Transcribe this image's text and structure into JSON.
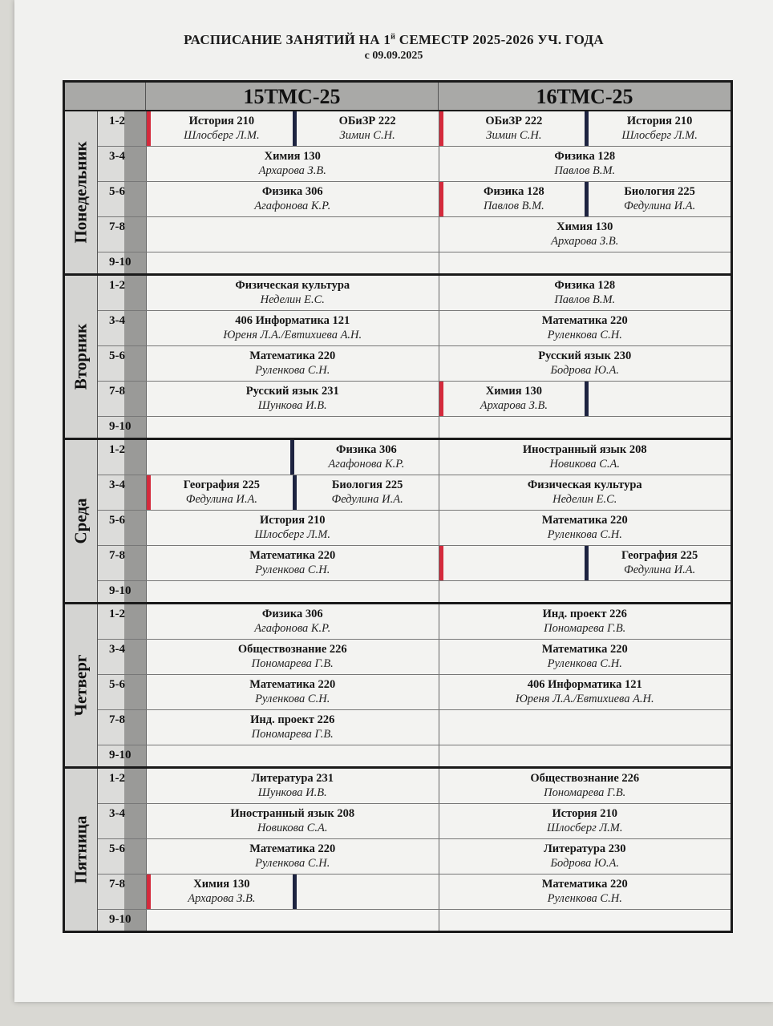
{
  "title": "РАСПИСАНИЕ ЗАНЯТИЙ НА 1",
  "title_sup": "й",
  "title_rest": " СЕМЕСТР 2025-2026 УЧ. ГОДА",
  "subtitle": "с 09.09.2025",
  "groups": [
    "15ТМС-25",
    "16ТМС-25"
  ],
  "marker_colors": {
    "red": "#d42a3c",
    "navy": "#1d2340"
  },
  "days": [
    {
      "name": "Понедельник",
      "rows": [
        {
          "pair": "1-2",
          "g": [
            {
              "type": "split",
              "left": {
                "subject": "История  210",
                "teacher": "Шлосберг Л.М."
              },
              "right": {
                "subject": "ОБиЗР  222",
                "teacher": "Зимин С.Н."
              }
            },
            {
              "type": "split",
              "left": {
                "subject": "ОБиЗР  222",
                "teacher": "Зимин С.Н."
              },
              "right": {
                "subject": "История  210",
                "teacher": "Шлосберг Л.М."
              }
            }
          ]
        },
        {
          "pair": "3-4",
          "g": [
            {
              "type": "full",
              "subject": "Химия 130",
              "teacher": "Архарова З.В."
            },
            {
              "type": "full",
              "subject": "Физика  128",
              "teacher": "Павлов В.М."
            }
          ]
        },
        {
          "pair": "5-6",
          "g": [
            {
              "type": "full",
              "subject": "Физика 306",
              "teacher": "Агафонова К.Р."
            },
            {
              "type": "split",
              "left": {
                "subject": "Физика  128",
                "teacher": "Павлов В.М."
              },
              "right": {
                "subject": "Биология 225",
                "teacher": "Федулина И.А."
              }
            }
          ]
        },
        {
          "pair": "7-8",
          "g": [
            {
              "type": "empty"
            },
            {
              "type": "full",
              "subject": "Химия 130",
              "teacher": "Архарова З.В."
            }
          ]
        },
        {
          "pair": "9-10",
          "g": [
            {
              "type": "empty"
            },
            {
              "type": "empty"
            }
          ]
        }
      ]
    },
    {
      "name": "Вторник",
      "rows": [
        {
          "pair": "1-2",
          "g": [
            {
              "type": "full",
              "subject": "Физическая культура",
              "teacher": "Неделин Е.С."
            },
            {
              "type": "full",
              "subject": "Физика  128",
              "teacher": "Павлов В.М."
            }
          ]
        },
        {
          "pair": "3-4",
          "g": [
            {
              "type": "full",
              "subject": "406   Информатика   121",
              "teacher": "Юреня Л.А./Евтихиева А.Н."
            },
            {
              "type": "full",
              "subject": "Математика  220",
              "teacher": "Руленкова С.Н."
            }
          ]
        },
        {
          "pair": "5-6",
          "g": [
            {
              "type": "full",
              "subject": "Математика  220",
              "teacher": "Руленкова С.Н."
            },
            {
              "type": "full",
              "subject": "Русский язык 230",
              "teacher": "Бодрова Ю.А."
            }
          ]
        },
        {
          "pair": "7-8",
          "g": [
            {
              "type": "full",
              "subject": "Русский язык 231",
              "teacher": "Шункова И.В."
            },
            {
              "type": "split",
              "left": {
                "subject": "Химия 130",
                "teacher": "Архарова З.В."
              },
              "right": null
            }
          ]
        },
        {
          "pair": "9-10",
          "g": [
            {
              "type": "empty"
            },
            {
              "type": "empty"
            }
          ]
        }
      ]
    },
    {
      "name": "Среда",
      "rows": [
        {
          "pair": "1-2",
          "g": [
            {
              "type": "split",
              "nomark": true,
              "left": null,
              "right": {
                "subject": "Физика 306",
                "teacher": "Агафонова К.Р."
              }
            },
            {
              "type": "full",
              "subject": "Иностранный язык   208",
              "teacher": "Новикова С.А."
            }
          ]
        },
        {
          "pair": "3-4",
          "g": [
            {
              "type": "split",
              "left": {
                "subject": "География  225",
                "teacher": "Федулина И.А."
              },
              "right": {
                "subject": "Биология 225",
                "teacher": "Федулина И.А."
              }
            },
            {
              "type": "full",
              "subject": "Физическая культура",
              "teacher": "Неделин Е.С."
            }
          ]
        },
        {
          "pair": "5-6",
          "g": [
            {
              "type": "full",
              "subject": "История  210",
              "teacher": "Шлосберг Л.М."
            },
            {
              "type": "full",
              "subject": "Математика  220",
              "teacher": "Руленкова С.Н."
            }
          ]
        },
        {
          "pair": "7-8",
          "g": [
            {
              "type": "full",
              "subject": "Математика  220",
              "teacher": "Руленкова С.Н."
            },
            {
              "type": "split",
              "left": null,
              "right": {
                "subject": "География  225",
                "teacher": "Федулина И.А."
              }
            }
          ]
        },
        {
          "pair": "9-10",
          "g": [
            {
              "type": "empty"
            },
            {
              "type": "empty"
            }
          ]
        }
      ]
    },
    {
      "name": "Четверг",
      "rows": [
        {
          "pair": "1-2",
          "g": [
            {
              "type": "full",
              "subject": "Физика 306",
              "teacher": "Агафонова К.Р."
            },
            {
              "type": "full",
              "subject": "Инд. проект 226",
              "teacher": "Пономарева Г.В."
            }
          ]
        },
        {
          "pair": "3-4",
          "g": [
            {
              "type": "full",
              "subject": "Обществознание  226",
              "teacher": "Пономарева Г.В."
            },
            {
              "type": "full",
              "subject": "Математика  220",
              "teacher": "Руленкова С.Н."
            }
          ]
        },
        {
          "pair": "5-6",
          "g": [
            {
              "type": "full",
              "subject": "Математика  220",
              "teacher": "Руленкова С.Н."
            },
            {
              "type": "full",
              "subject": "406   Информатика   121",
              "teacher": "Юреня Л.А./Евтихиева А.Н."
            }
          ]
        },
        {
          "pair": "7-8",
          "g": [
            {
              "type": "full",
              "subject": "Инд. проект 226",
              "teacher": "Пономарева Г.В."
            },
            {
              "type": "empty"
            }
          ]
        },
        {
          "pair": "9-10",
          "g": [
            {
              "type": "empty"
            },
            {
              "type": "empty"
            }
          ]
        }
      ]
    },
    {
      "name": "Пятница",
      "rows": [
        {
          "pair": "1-2",
          "g": [
            {
              "type": "full",
              "subject": "Литература  231",
              "teacher": "Шункова И.В."
            },
            {
              "type": "full",
              "subject": "Обществознание  226",
              "teacher": "Пономарева Г.В."
            }
          ]
        },
        {
          "pair": "3-4",
          "g": [
            {
              "type": "full",
              "subject": "Иностранный язык   208",
              "teacher": "Новикова С.А."
            },
            {
              "type": "full",
              "subject": "История  210",
              "teacher": "Шлосберг Л.М."
            }
          ]
        },
        {
          "pair": "5-6",
          "g": [
            {
              "type": "full",
              "subject": "Математика  220",
              "teacher": "Руленкова С.Н."
            },
            {
              "type": "full",
              "subject": "Литература  230",
              "teacher": "Бодрова Ю.А."
            }
          ]
        },
        {
          "pair": "7-8",
          "g": [
            {
              "type": "split",
              "left": {
                "subject": "Химия 130",
                "teacher": "Архарова З.В."
              },
              "right": null
            },
            {
              "type": "full",
              "subject": "Математика  220",
              "teacher": "Руленкова С.Н."
            }
          ]
        },
        {
          "pair": "9-10",
          "g": [
            {
              "type": "empty"
            },
            {
              "type": "empty"
            }
          ]
        }
      ]
    }
  ]
}
